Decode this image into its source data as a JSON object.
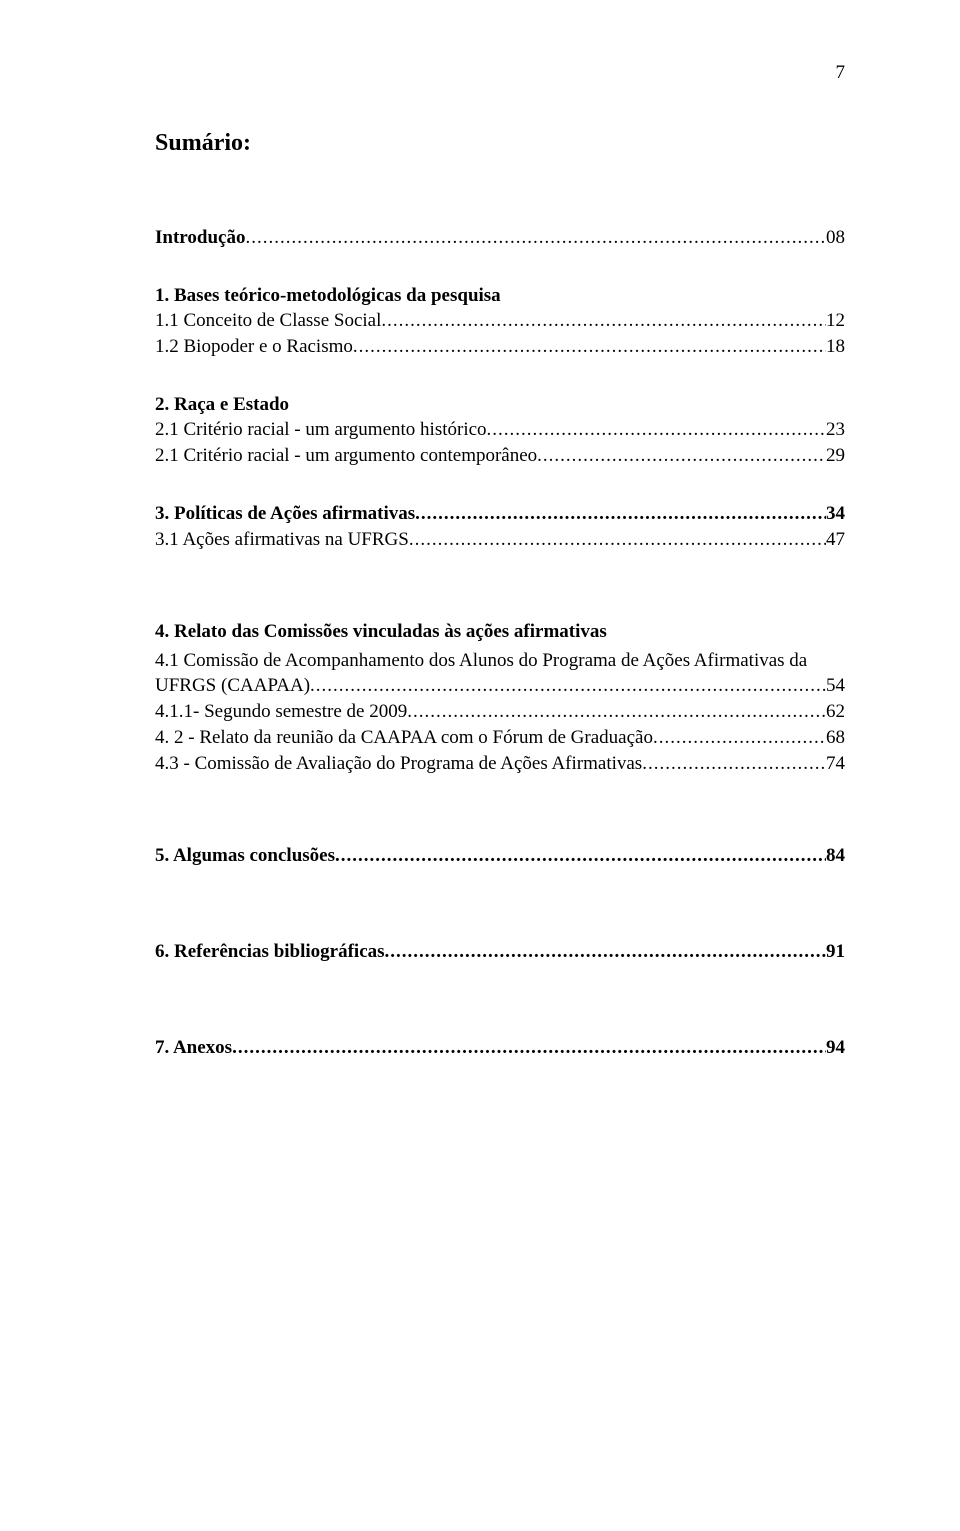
{
  "page_number": "7",
  "title": "Sumário:",
  "text_color": "#000000",
  "background_color": "#ffffff",
  "font_family": "Times New Roman",
  "body_fontsize_pt": 14,
  "entries": {
    "intro": {
      "label": "Introdução",
      "page": "08",
      "bold": true
    },
    "s1": {
      "label": "1. Bases teórico-metodológicas da pesquisa",
      "bold": true
    },
    "s1_1": {
      "label": "1.1 Conceito de Classe Social",
      "page": "12"
    },
    "s1_2": {
      "label": "1.2 Biopoder e o Racismo",
      "page": "18"
    },
    "s2": {
      "label": "2. Raça e Estado",
      "bold": true
    },
    "s2_1": {
      "label": "2.1 Critério racial - um argumento histórico",
      "page": "23"
    },
    "s2_1b": {
      "label": "2.1 Critério racial - um argumento contemporâneo",
      "page": "29"
    },
    "s3": {
      "label": "3. Políticas de Ações afirmativas",
      "page": "34",
      "bold": true
    },
    "s3_1": {
      "label": "3.1 Ações afirmativas na UFRGS",
      "page": "47"
    },
    "s4": {
      "label": "4. Relato das Comissões vinculadas às ações afirmativas",
      "bold": true
    },
    "s4_1_top": "4.1 Comissão de Acompanhamento dos Alunos do Programa de Ações Afirmativas da",
    "s4_1": {
      "label": "UFRGS (CAAPAA)",
      "page": "54"
    },
    "s4_1_1": {
      "label": "4.1.1- Segundo semestre de 2009",
      "page": "62"
    },
    "s4_2": {
      "label": "4. 2 - Relato da reunião da CAAPAA com o Fórum de Graduação",
      "page": "68"
    },
    "s4_3": {
      "label": "4.3 - Comissão de Avaliação do Programa de Ações Afirmativas",
      "page": "74"
    },
    "s5": {
      "label": "5. Algumas conclusões",
      "page": "84",
      "bold": true
    },
    "s6": {
      "label": "6. Referências bibliográficas",
      "page": "91",
      "bold": true
    },
    "s7": {
      "label": "7. Anexos",
      "page": "94",
      "bold": true
    }
  }
}
